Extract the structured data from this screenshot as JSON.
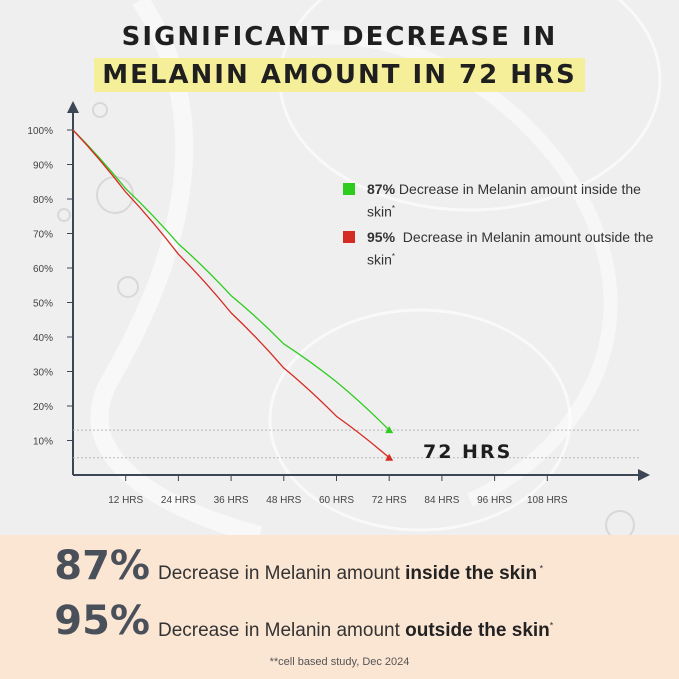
{
  "title": {
    "line1": "SIGNIFICANT DECREASE IN",
    "line2": "MELANIN AMOUNT IN 72 HRS"
  },
  "legend": [
    {
      "color": "#2ecc1f",
      "bold": "87%",
      "text": " Decrease in Melanin amount inside the skin",
      "sup": "*"
    },
    {
      "color": "#d62b23",
      "bold": "95%",
      "text": "  Decrease in Melanin amount outside the skin",
      "sup": "*"
    }
  ],
  "callout": "72 HRS",
  "stats": [
    {
      "pct": "87%",
      "text": "Decrease in Melanin amount ",
      "bold": "inside the skin",
      "sup": " *"
    },
    {
      "pct": "95%",
      "text": "Decrease in Melanin amount ",
      "bold": "outside the skin",
      "sup": "*"
    }
  ],
  "footnote": "**cell based study, Dec 2024",
  "chart_data": {
    "type": "line",
    "title": "SIGNIFICANT DECREASE IN MELANIN AMOUNT IN 72 HRS",
    "xlabel": "",
    "ylabel": "",
    "x_ticks": [
      "12 HRS",
      "24 HRS",
      "36 HRS",
      "48 HRS",
      "60 HRS",
      "72 HRS",
      "84 HRS",
      "96 HRS",
      "108 HRS"
    ],
    "y_ticks": [
      "100%",
      "90%",
      "80%",
      "70%",
      "60%",
      "50%",
      "40%",
      "30%",
      "20%",
      "10%"
    ],
    "xlim": [
      0,
      120
    ],
    "ylim": [
      0,
      100
    ],
    "grid": false,
    "legend_position": "right",
    "reference_lines_y": [
      13,
      5
    ],
    "series": [
      {
        "name": "87% Decrease in Melanin amount inside the skin",
        "color": "#2ecc1f",
        "x": [
          0,
          12,
          24,
          36,
          48,
          60,
          72
        ],
        "y": [
          100,
          83,
          67,
          52,
          38,
          27,
          13
        ]
      },
      {
        "name": "95% Decrease in Melanin amount outside the skin",
        "color": "#d62b23",
        "x": [
          0,
          12,
          24,
          36,
          48,
          60,
          72
        ],
        "y": [
          100,
          82,
          64,
          47,
          31,
          17,
          5
        ]
      }
    ]
  }
}
